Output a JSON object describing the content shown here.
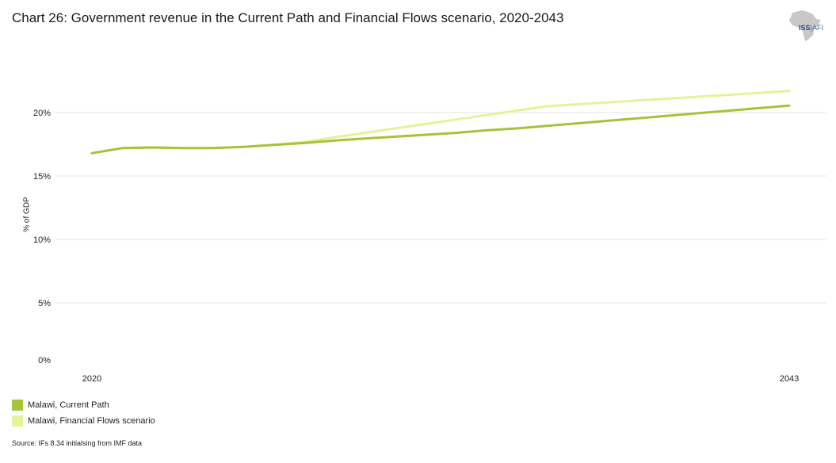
{
  "title": "Chart 26: Government revenue in the Current Path and Financial Flows scenario, 2020-2043",
  "logo": {
    "text_main": "ISS",
    "text_sub": "AFI",
    "icon": "africa-map-icon"
  },
  "source": "Source: IFs 8.34 initialsing from IMF data",
  "colors": {
    "current_path": "#a4c43a",
    "financial_flows": "#e6f29a",
    "grid": "#e3e3e3"
  },
  "chart_data": {
    "type": "line",
    "title": "Chart 26: Government revenue in the Current Path and Financial Flows scenario, 2020-2043",
    "xlabel": "",
    "ylabel": "% of GDP",
    "x": [
      2020,
      2021,
      2022,
      2023,
      2024,
      2025,
      2026,
      2027,
      2028,
      2029,
      2030,
      2031,
      2032,
      2033,
      2034,
      2035,
      2036,
      2037,
      2038,
      2039,
      2040,
      2041,
      2042,
      2043
    ],
    "x_tick_labels": [
      "2020",
      "2043"
    ],
    "y_ticks": [
      0,
      5,
      10,
      15,
      20
    ],
    "y_tick_labels": [
      "0%",
      "5%",
      "10%",
      "15%",
      "20%"
    ],
    "ylim": [
      0,
      22.5
    ],
    "grid": true,
    "legend_position": "bottom-left",
    "series": [
      {
        "name": "Malawi, Current Path",
        "color": "#a4c43a",
        "values": [
          16.8,
          17.2,
          17.25,
          17.2,
          17.2,
          17.3,
          17.45,
          17.6,
          17.8,
          17.95,
          18.1,
          18.25,
          18.4,
          18.6,
          18.75,
          18.95,
          19.15,
          19.35,
          19.55,
          19.75,
          19.95,
          20.15,
          20.35,
          20.55
        ]
      },
      {
        "name": "Malawi, Financial Flows scenario",
        "color": "#e6f29a",
        "values": [
          16.8,
          17.2,
          17.25,
          17.2,
          17.2,
          17.3,
          17.45,
          17.7,
          18.05,
          18.4,
          18.75,
          19.1,
          19.45,
          19.8,
          20.15,
          20.5,
          20.65,
          20.8,
          20.95,
          21.1,
          21.25,
          21.4,
          21.55,
          21.7
        ]
      }
    ]
  }
}
